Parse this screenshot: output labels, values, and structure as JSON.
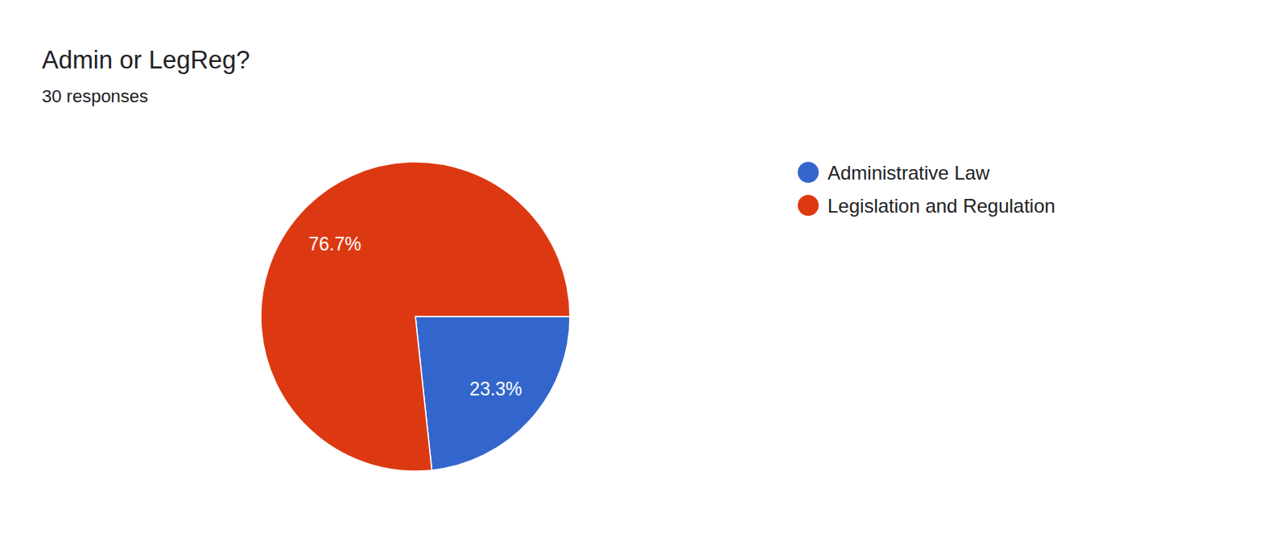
{
  "chart_data": {
    "type": "pie",
    "title": "Admin or LegReg?",
    "subtitle": "30 responses",
    "categories": [
      "Administrative Law",
      "Legislation and Regulation"
    ],
    "values": [
      23.3,
      76.7
    ],
    "value_labels": [
      "23.3%",
      "76.7%"
    ],
    "colors": [
      "#3366cc",
      "#dc3912"
    ],
    "data_labels": true,
    "legend": "right"
  }
}
